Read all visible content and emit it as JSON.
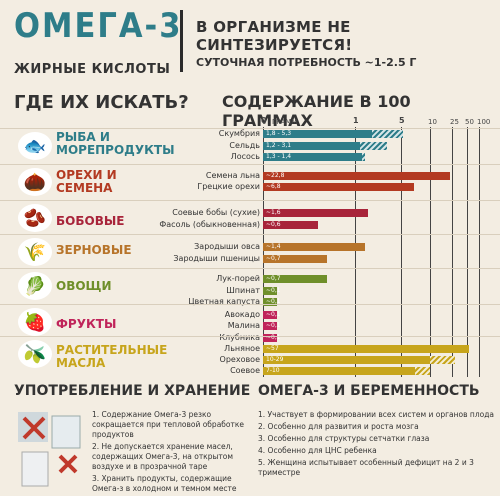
{
  "header": {
    "title": "ОМЕГА-3",
    "subtitle": "ЖИРНЫЕ КИСЛОТЫ",
    "statement": "В ОРГАНИЗМЕ НЕ СИНТЕЗИРУЕТСЯ!",
    "daily_need": "СУТОЧНАЯ ПОТРЕБНОСТЬ ~1-2.5 Г"
  },
  "sections": {
    "where": "ГДЕ ИХ ИСКАТЬ?",
    "content": "СОДЕРЖАНИЕ В 100 ГРАММАХ",
    "usage": "УПОТРЕБЛЕНИЕ И ХРАНЕНИЕ",
    "pregnancy": "ОМЕГА-3 И БЕРЕМЕННОСТЬ"
  },
  "axis": {
    "ticks": [
      "0",
      "ГРАММ",
      "1",
      "5",
      "10",
      "25",
      "50",
      "100"
    ]
  },
  "categories": [
    {
      "name": "РЫБА И МОРЕПРОДУКТЫ",
      "color": "#2e7d89",
      "icon": "fish-icon",
      "glyph": "🐟"
    },
    {
      "name": "ОРЕХИ И СЕМЕНА",
      "color": "#b33a22",
      "icon": "nuts-icon",
      "glyph": "🌰"
    },
    {
      "name": "БОБОВЫЕ",
      "color": "#a8243a",
      "icon": "beans-icon",
      "glyph": "🫘"
    },
    {
      "name": "ЗЕРНОВЫЕ",
      "color": "#b7742a",
      "icon": "grain-icon",
      "glyph": "🌾"
    },
    {
      "name": "ОВОЩИ",
      "color": "#6f8f2a",
      "icon": "vegetables-icon",
      "glyph": "🥬"
    },
    {
      "name": "ФРУКТЫ",
      "color": "#c0245a",
      "icon": "fruits-icon",
      "glyph": "🍓"
    },
    {
      "name": "РАСТИТЕЛЬНЫЕ МАСЛА",
      "color": "#c7a51c",
      "icon": "oil-icon",
      "glyph": "🫒"
    }
  ],
  "chart_data": {
    "type": "bar",
    "title": "СОДЕРЖАНИЕ В 100 ГРАММАХ",
    "ylabel": "ГРАММ",
    "items": [
      {
        "name": "Скумбрия",
        "label": "1,8 - 5,3",
        "min": 1.8,
        "max": 5.3,
        "category": 0
      },
      {
        "name": "Сельдь",
        "label": "1,2 - 3,1",
        "min": 1.2,
        "max": 3.1,
        "category": 0
      },
      {
        "name": "Лосось",
        "label": "1,3 - 1,4",
        "min": 1.3,
        "max": 1.4,
        "category": 0
      },
      {
        "name": "Семена льна",
        "label": "~22,8",
        "min": 22.8,
        "max": 22.8,
        "category": 1
      },
      {
        "name": "Грецкие орехи",
        "label": "~6,8",
        "min": 6.8,
        "max": 6.8,
        "category": 1
      },
      {
        "name": "Соевые бобы (сухие)",
        "label": "~1,6",
        "min": 1.6,
        "max": 1.6,
        "category": 2
      },
      {
        "name": "Фасоль (обыкновенная)",
        "label": "~0,6",
        "min": 0.6,
        "max": 0.6,
        "category": 2
      },
      {
        "name": "Зародыши овса",
        "label": "~1,4",
        "min": 1.4,
        "max": 1.4,
        "category": 3
      },
      {
        "name": "Зародыши пшеницы",
        "label": "~0,7",
        "min": 0.7,
        "max": 0.7,
        "category": 3
      },
      {
        "name": "Лук-порей",
        "label": "~0,7",
        "min": 0.7,
        "max": 0.7,
        "category": 4
      },
      {
        "name": "Шпинат",
        "label": "~0,1",
        "min": 0.1,
        "max": 0.1,
        "category": 4
      },
      {
        "name": "Цветная капуста",
        "label": "~0,1",
        "min": 0.1,
        "max": 0.1,
        "category": 4
      },
      {
        "name": "Авокадо",
        "label": "~0,1",
        "min": 0.1,
        "max": 0.1,
        "category": 5
      },
      {
        "name": "Малина",
        "label": "~0,1",
        "min": 0.1,
        "max": 0.1,
        "category": 5
      },
      {
        "name": "Клубника",
        "label": "~0,1",
        "min": 0.1,
        "max": 0.1,
        "category": 5
      },
      {
        "name": "Льняное",
        "label": "~57",
        "min": 57,
        "max": 57,
        "category": 6
      },
      {
        "name": "Ореховое",
        "label": "10-29",
        "min": 10,
        "max": 29,
        "category": 6
      },
      {
        "name": "Соевое",
        "label": "7-10",
        "min": 7,
        "max": 10,
        "category": 6
      }
    ]
  },
  "usage_list": [
    "1. Содержание Омега-3 резко сокращается при тепловой обработке продуктов",
    "2. Не допускается хранение масел, содержащих Омега-3, на открытом воздухе и в прозрачной таре",
    "3. Хранить продукты, содержащие Омега-з в холодном и темном месте"
  ],
  "pregnancy_list": [
    "1. Участвует в формировании всех систем и органов плода",
    "2. Особенно для развития и роста мозга",
    "3. Особенно для структуры сетчатки глаза",
    "4. Особенно для ЦНС ребенка",
    "5. Женщина испытывает особенный дефицит на 2 и 3 триместре"
  ]
}
